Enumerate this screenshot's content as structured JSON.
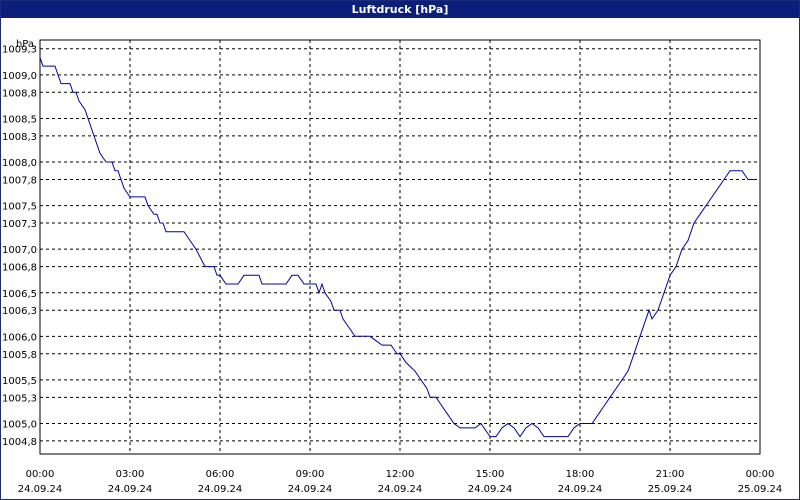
{
  "window": {
    "title": "Luftdruck [hPa]"
  },
  "chart_data": {
    "type": "line",
    "title": "Luftdruck [hPa]",
    "ylabel": "hPa",
    "xlabel": "",
    "ylim": [
      1004.65,
      1009.4
    ],
    "xlim": [
      0,
      24
    ],
    "grid": true,
    "color": "#0000aa",
    "y_ticks": [
      1009.3,
      1009.0,
      1008.8,
      1008.5,
      1008.3,
      1008.0,
      1007.8,
      1007.5,
      1007.3,
      1007.0,
      1006.8,
      1006.5,
      1006.3,
      1006.0,
      1005.8,
      1005.5,
      1005.3,
      1005.0,
      1004.8
    ],
    "y_tick_labels": [
      "1009,3",
      "1009,0",
      "1008,8",
      "1008,5",
      "1008,3",
      "1008,0",
      "1007,8",
      "1007,5",
      "1007,3",
      "1007,0",
      "1006,8",
      "1006,5",
      "1006,3",
      "1006,0",
      "1005,8",
      "1005,5",
      "1005,3",
      "1005,0",
      "1004,8"
    ],
    "x_ticks": [
      {
        "time": "00:00",
        "date": "24.09.24"
      },
      {
        "time": "03:00",
        "date": "24.09.24"
      },
      {
        "time": "06:00",
        "date": "24.09.24"
      },
      {
        "time": "09:00",
        "date": "24.09.24"
      },
      {
        "time": "12:00",
        "date": "24.09.24"
      },
      {
        "time": "15:00",
        "date": "24.09.24"
      },
      {
        "time": "18:00",
        "date": "24.09.24"
      },
      {
        "time": "21:00",
        "date": "25.09.24"
      },
      {
        "time": "00:00",
        "date": "25.09.24"
      }
    ],
    "series": [
      {
        "x": [
          0.0,
          0.1,
          0.5,
          0.6,
          0.7,
          1.0,
          1.1,
          1.2,
          1.3,
          1.5,
          1.6,
          1.7,
          1.8,
          2.0,
          2.2,
          2.4,
          2.5,
          2.6,
          2.7,
          2.8,
          3.0,
          3.2,
          3.5,
          3.6,
          3.8,
          3.9,
          4.0,
          4.1,
          4.2,
          4.3,
          4.5,
          4.6,
          4.8,
          5.0,
          5.2,
          5.5,
          5.6,
          5.8,
          5.9,
          6.0,
          6.2,
          6.6,
          6.8,
          7.3,
          7.4,
          8.2,
          8.4,
          8.6,
          8.8,
          9.0,
          9.2,
          9.3,
          9.4,
          9.5,
          9.7,
          9.8,
          10.0,
          10.1,
          10.3,
          10.5,
          10.7,
          10.9,
          11.0,
          11.4,
          11.5,
          11.7,
          11.9,
          12.0,
          12.2,
          12.5,
          12.7,
          12.9,
          13.0,
          13.2,
          13.4,
          13.6,
          13.8,
          14.0,
          14.2,
          14.4,
          14.5,
          14.7,
          14.8,
          15.0,
          15.2,
          15.4,
          15.6,
          15.8,
          16.0,
          16.2,
          16.4,
          16.6,
          16.8,
          17.0,
          17.2,
          17.4,
          17.6,
          17.8,
          18.0,
          18.2,
          18.4,
          18.6,
          18.8,
          19.0,
          19.2,
          19.4,
          19.6,
          19.8,
          20.0,
          20.2,
          20.3,
          20.4,
          20.6,
          20.7,
          20.8,
          21.0,
          21.2,
          21.4,
          21.6,
          21.8,
          22.0,
          22.2,
          22.4,
          22.6,
          22.8,
          23.0,
          23.2,
          23.4,
          23.6,
          23.8
        ],
        "values": [
          1009.2,
          1009.1,
          1009.1,
          1009.0,
          1008.9,
          1008.9,
          1008.8,
          1008.8,
          1008.7,
          1008.6,
          1008.5,
          1008.4,
          1008.3,
          1008.1,
          1008.0,
          1008.0,
          1007.9,
          1007.9,
          1007.8,
          1007.7,
          1007.6,
          1007.6,
          1007.6,
          1007.5,
          1007.4,
          1007.4,
          1007.3,
          1007.3,
          1007.2,
          1007.2,
          1007.2,
          1007.2,
          1007.2,
          1007.1,
          1007.0,
          1006.8,
          1006.8,
          1006.8,
          1006.7,
          1006.7,
          1006.6,
          1006.6,
          1006.7,
          1006.7,
          1006.6,
          1006.6,
          1006.7,
          1006.7,
          1006.6,
          1006.6,
          1006.6,
          1006.5,
          1006.6,
          1006.5,
          1006.4,
          1006.3,
          1006.3,
          1006.2,
          1006.1,
          1006.0,
          1006.0,
          1006.0,
          1006.0,
          1005.9,
          1005.9,
          1005.9,
          1005.8,
          1005.8,
          1005.7,
          1005.6,
          1005.5,
          1005.4,
          1005.3,
          1005.3,
          1005.2,
          1005.1,
          1005.0,
          1004.95,
          1004.95,
          1004.95,
          1004.95,
          1005.0,
          1004.95,
          1004.85,
          1004.85,
          1004.95,
          1005.0,
          1004.95,
          1004.85,
          1004.95,
          1005.0,
          1004.95,
          1004.85,
          1004.85,
          1004.85,
          1004.85,
          1004.85,
          1004.95,
          1005.0,
          1005.0,
          1005.0,
          1005.1,
          1005.2,
          1005.3,
          1005.4,
          1005.5,
          1005.6,
          1005.8,
          1006.0,
          1006.2,
          1006.3,
          1006.2,
          1006.3,
          1006.4,
          1006.5,
          1006.7,
          1006.8,
          1007.0,
          1007.1,
          1007.3,
          1007.4,
          1007.5,
          1007.6,
          1007.7,
          1007.8,
          1007.9,
          1007.9,
          1007.9,
          1007.8,
          1007.8
        ]
      }
    ]
  }
}
